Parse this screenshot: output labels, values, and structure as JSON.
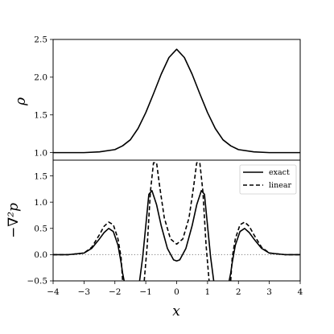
{
  "chart_data": [
    {
      "type": "line",
      "panel": "top",
      "ylabel": "ρ",
      "xlim": [
        -4,
        4
      ],
      "ylim": [
        0.9,
        2.5
      ],
      "yticks": [
        "1.0",
        "1.5",
        "2.0",
        "2.5"
      ],
      "ytick_values": [
        1.0,
        1.5,
        2.0,
        2.5
      ],
      "grid": false,
      "series": [
        {
          "color": "#000000",
          "dash": "solid",
          "x": [
            -4,
            -3.5,
            -3,
            -2.5,
            -2,
            -1.75,
            -1.5,
            -1.25,
            -1,
            -0.75,
            -0.5,
            -0.25,
            0,
            0.25,
            0.5,
            0.75,
            1,
            1.25,
            1.5,
            1.75,
            2,
            2.5,
            3,
            3.5,
            4
          ],
          "y": [
            1.0,
            1.0,
            1.0,
            1.01,
            1.04,
            1.09,
            1.17,
            1.32,
            1.53,
            1.78,
            2.04,
            2.26,
            2.37,
            2.26,
            2.04,
            1.78,
            1.53,
            1.32,
            1.17,
            1.09,
            1.04,
            1.01,
            1.0,
            1.0,
            1.0
          ]
        }
      ]
    },
    {
      "type": "line",
      "panel": "bottom",
      "xlabel": "x",
      "ylabel": "−∇²p",
      "xlim": [
        -4,
        4
      ],
      "ylim": [
        -0.5,
        1.8
      ],
      "xticks": [
        "−4",
        "−3",
        "−2",
        "−1",
        "0",
        "1",
        "2",
        "3",
        "4"
      ],
      "xtick_values": [
        -4,
        -3,
        -2,
        -1,
        0,
        1,
        2,
        3,
        4
      ],
      "yticks": [
        "−0.5",
        "0.0",
        "0.5",
        "1.0",
        "1.5"
      ],
      "ytick_values": [
        -0.5,
        0.0,
        0.5,
        1.0,
        1.5
      ],
      "grid": false,
      "reference_line": {
        "y": 0.0,
        "color": "#7f7f7f",
        "dash": "dotted"
      },
      "legend": {
        "position": "top-right",
        "entries": [
          "exact",
          "linear"
        ]
      },
      "series": [
        {
          "name": "exact",
          "color": "#000000",
          "dash": "solid",
          "x": [
            -4,
            -3.5,
            -3,
            -2.75,
            -2.5,
            -2.35,
            -2.2,
            -2.05,
            -1.9,
            -1.8,
            -1.75,
            -1.7,
            null,
            -1.2,
            -1.1,
            -1.0,
            -0.9,
            -0.8,
            -0.65,
            -0.5,
            -0.3,
            -0.1,
            0,
            0.1,
            0.3,
            0.5,
            0.65,
            0.8,
            0.9,
            1.0,
            1.1,
            1.2,
            null,
            1.7,
            1.75,
            1.8,
            1.9,
            2.05,
            2.2,
            2.35,
            2.5,
            2.75,
            3,
            3.5,
            4
          ],
          "y": [
            0.0,
            0.0,
            0.03,
            0.12,
            0.3,
            0.42,
            0.5,
            0.44,
            0.18,
            -0.15,
            -0.35,
            -0.5,
            null,
            -0.5,
            -0.05,
            0.55,
            1.15,
            1.22,
            0.95,
            0.55,
            0.12,
            -0.1,
            -0.12,
            -0.1,
            0.12,
            0.55,
            0.95,
            1.22,
            1.15,
            0.55,
            -0.05,
            -0.5,
            null,
            -0.5,
            -0.35,
            -0.15,
            0.18,
            0.44,
            0.5,
            0.42,
            0.3,
            0.12,
            0.03,
            0.0,
            0.0
          ]
        },
        {
          "name": "linear",
          "color": "#000000",
          "dash": "dashed",
          "x": [
            -4,
            -3.5,
            -3,
            -2.75,
            -2.5,
            -2.35,
            -2.2,
            -2.05,
            -1.9,
            -1.8,
            -1.75,
            null,
            -1.05,
            -0.95,
            -0.85,
            -0.75,
            -0.65,
            -0.55,
            -0.4,
            -0.2,
            0,
            0.2,
            0.4,
            0.55,
            0.65,
            0.75,
            0.85,
            0.95,
            1.05,
            null,
            1.75,
            1.8,
            1.9,
            2.05,
            2.2,
            2.35,
            2.5,
            2.75,
            3,
            3.5,
            4
          ],
          "y": [
            0.0,
            0.0,
            0.03,
            0.14,
            0.38,
            0.54,
            0.62,
            0.57,
            0.3,
            -0.05,
            -0.5,
            null,
            -0.5,
            0.2,
            1.2,
            1.75,
            1.75,
            1.3,
            0.7,
            0.3,
            0.2,
            0.3,
            0.7,
            1.3,
            1.75,
            1.75,
            1.2,
            0.2,
            -0.5,
            null,
            -0.5,
            -0.05,
            0.3,
            0.57,
            0.62,
            0.54,
            0.38,
            0.14,
            0.03,
            0.0,
            0.0
          ]
        }
      ]
    }
  ]
}
